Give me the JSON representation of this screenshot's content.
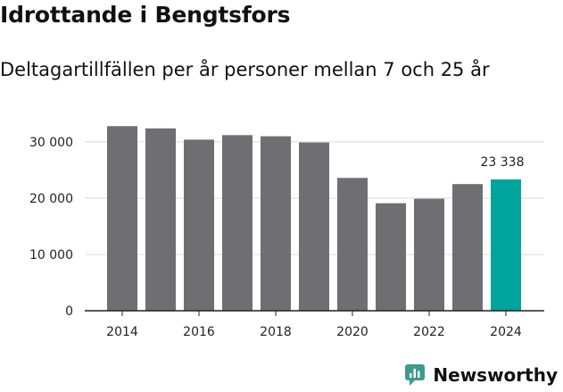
{
  "title": "Idrottande i Bengtsfors",
  "subtitle": "Deltagartillfällen per år personer mellan 7 och 25 år",
  "brand": {
    "name": "Newsworthy",
    "icon": "newsworthy-logo-icon",
    "color": "#3e9b8f"
  },
  "colors": {
    "bar": "#6f6e73",
    "highlight": "#00a49a",
    "grid": "#d9d9d9",
    "axis": "#222222"
  },
  "chart_data": {
    "type": "bar",
    "title": "Idrottande i Bengtsfors",
    "subtitle": "Deltagartillfällen per år personer mellan 7 och 25 år",
    "xlabel": "",
    "ylabel": "",
    "categories": [
      "2014",
      "2015",
      "2016",
      "2017",
      "2018",
      "2019",
      "2020",
      "2021",
      "2022",
      "2023",
      "2024"
    ],
    "values": [
      32800,
      32400,
      30400,
      31200,
      31000,
      29900,
      23600,
      19100,
      19900,
      22500,
      23338
    ],
    "x_tick_labels": [
      "2014",
      "2016",
      "2018",
      "2020",
      "2022",
      "2024"
    ],
    "y_ticks": [
      0,
      10000,
      20000,
      30000
    ],
    "y_tick_labels": [
      "0",
      "10 000",
      "20 000",
      "30 000"
    ],
    "ylim": [
      0,
      33000
    ],
    "grid": true,
    "highlight_index": 10,
    "data_label": {
      "index": 10,
      "text": "23 338"
    }
  }
}
